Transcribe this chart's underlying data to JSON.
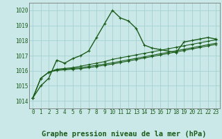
{
  "background_color": "#cbe8e8",
  "grid_color": "#9ecece",
  "line_color": "#1a5c1a",
  "marker_color": "#1a5c1a",
  "title": "Graphe pression niveau de la mer (hPa)",
  "xlim": [
    -0.5,
    23.5
  ],
  "ylim": [
    1013.5,
    1020.5
  ],
  "yticks": [
    1014,
    1015,
    1016,
    1017,
    1018,
    1019,
    1020
  ],
  "xticks": [
    0,
    1,
    2,
    3,
    4,
    5,
    6,
    7,
    8,
    9,
    10,
    11,
    12,
    13,
    14,
    15,
    16,
    17,
    18,
    19,
    20,
    21,
    22,
    23
  ],
  "series": [
    [
      1014.2,
      1015.0,
      1015.5,
      1016.7,
      1016.5,
      1016.8,
      1017.0,
      1017.3,
      1018.2,
      1019.1,
      1020.0,
      1019.5,
      1019.3,
      1018.8,
      1017.7,
      1017.5,
      1017.4,
      1017.3,
      1017.2,
      1017.9,
      1018.0,
      1018.1,
      1018.2,
      1018.1
    ],
    [
      1014.2,
      1015.5,
      1015.9,
      1016.1,
      1016.15,
      1016.2,
      1016.3,
      1016.4,
      1016.5,
      1016.6,
      1016.75,
      1016.85,
      1016.95,
      1017.05,
      1017.15,
      1017.25,
      1017.35,
      1017.45,
      1017.55,
      1017.65,
      1017.75,
      1017.85,
      1017.95,
      1018.05
    ],
    [
      1014.2,
      1015.5,
      1015.9,
      1016.05,
      1016.1,
      1016.15,
      1016.2,
      1016.28,
      1016.36,
      1016.44,
      1016.52,
      1016.62,
      1016.72,
      1016.82,
      1016.92,
      1017.02,
      1017.12,
      1017.22,
      1017.32,
      1017.42,
      1017.52,
      1017.62,
      1017.72,
      1017.82
    ],
    [
      1014.2,
      1015.5,
      1015.9,
      1016.02,
      1016.06,
      1016.1,
      1016.14,
      1016.2,
      1016.28,
      1016.36,
      1016.44,
      1016.54,
      1016.64,
      1016.74,
      1016.84,
      1016.94,
      1017.04,
      1017.14,
      1017.24,
      1017.34,
      1017.44,
      1017.54,
      1017.64,
      1017.74
    ]
  ],
  "title_fontsize": 7.5,
  "tick_fontsize": 5.5,
  "title_color": "#1a5c1a",
  "tick_color": "#1a5c1a",
  "spine_color": "#666666"
}
